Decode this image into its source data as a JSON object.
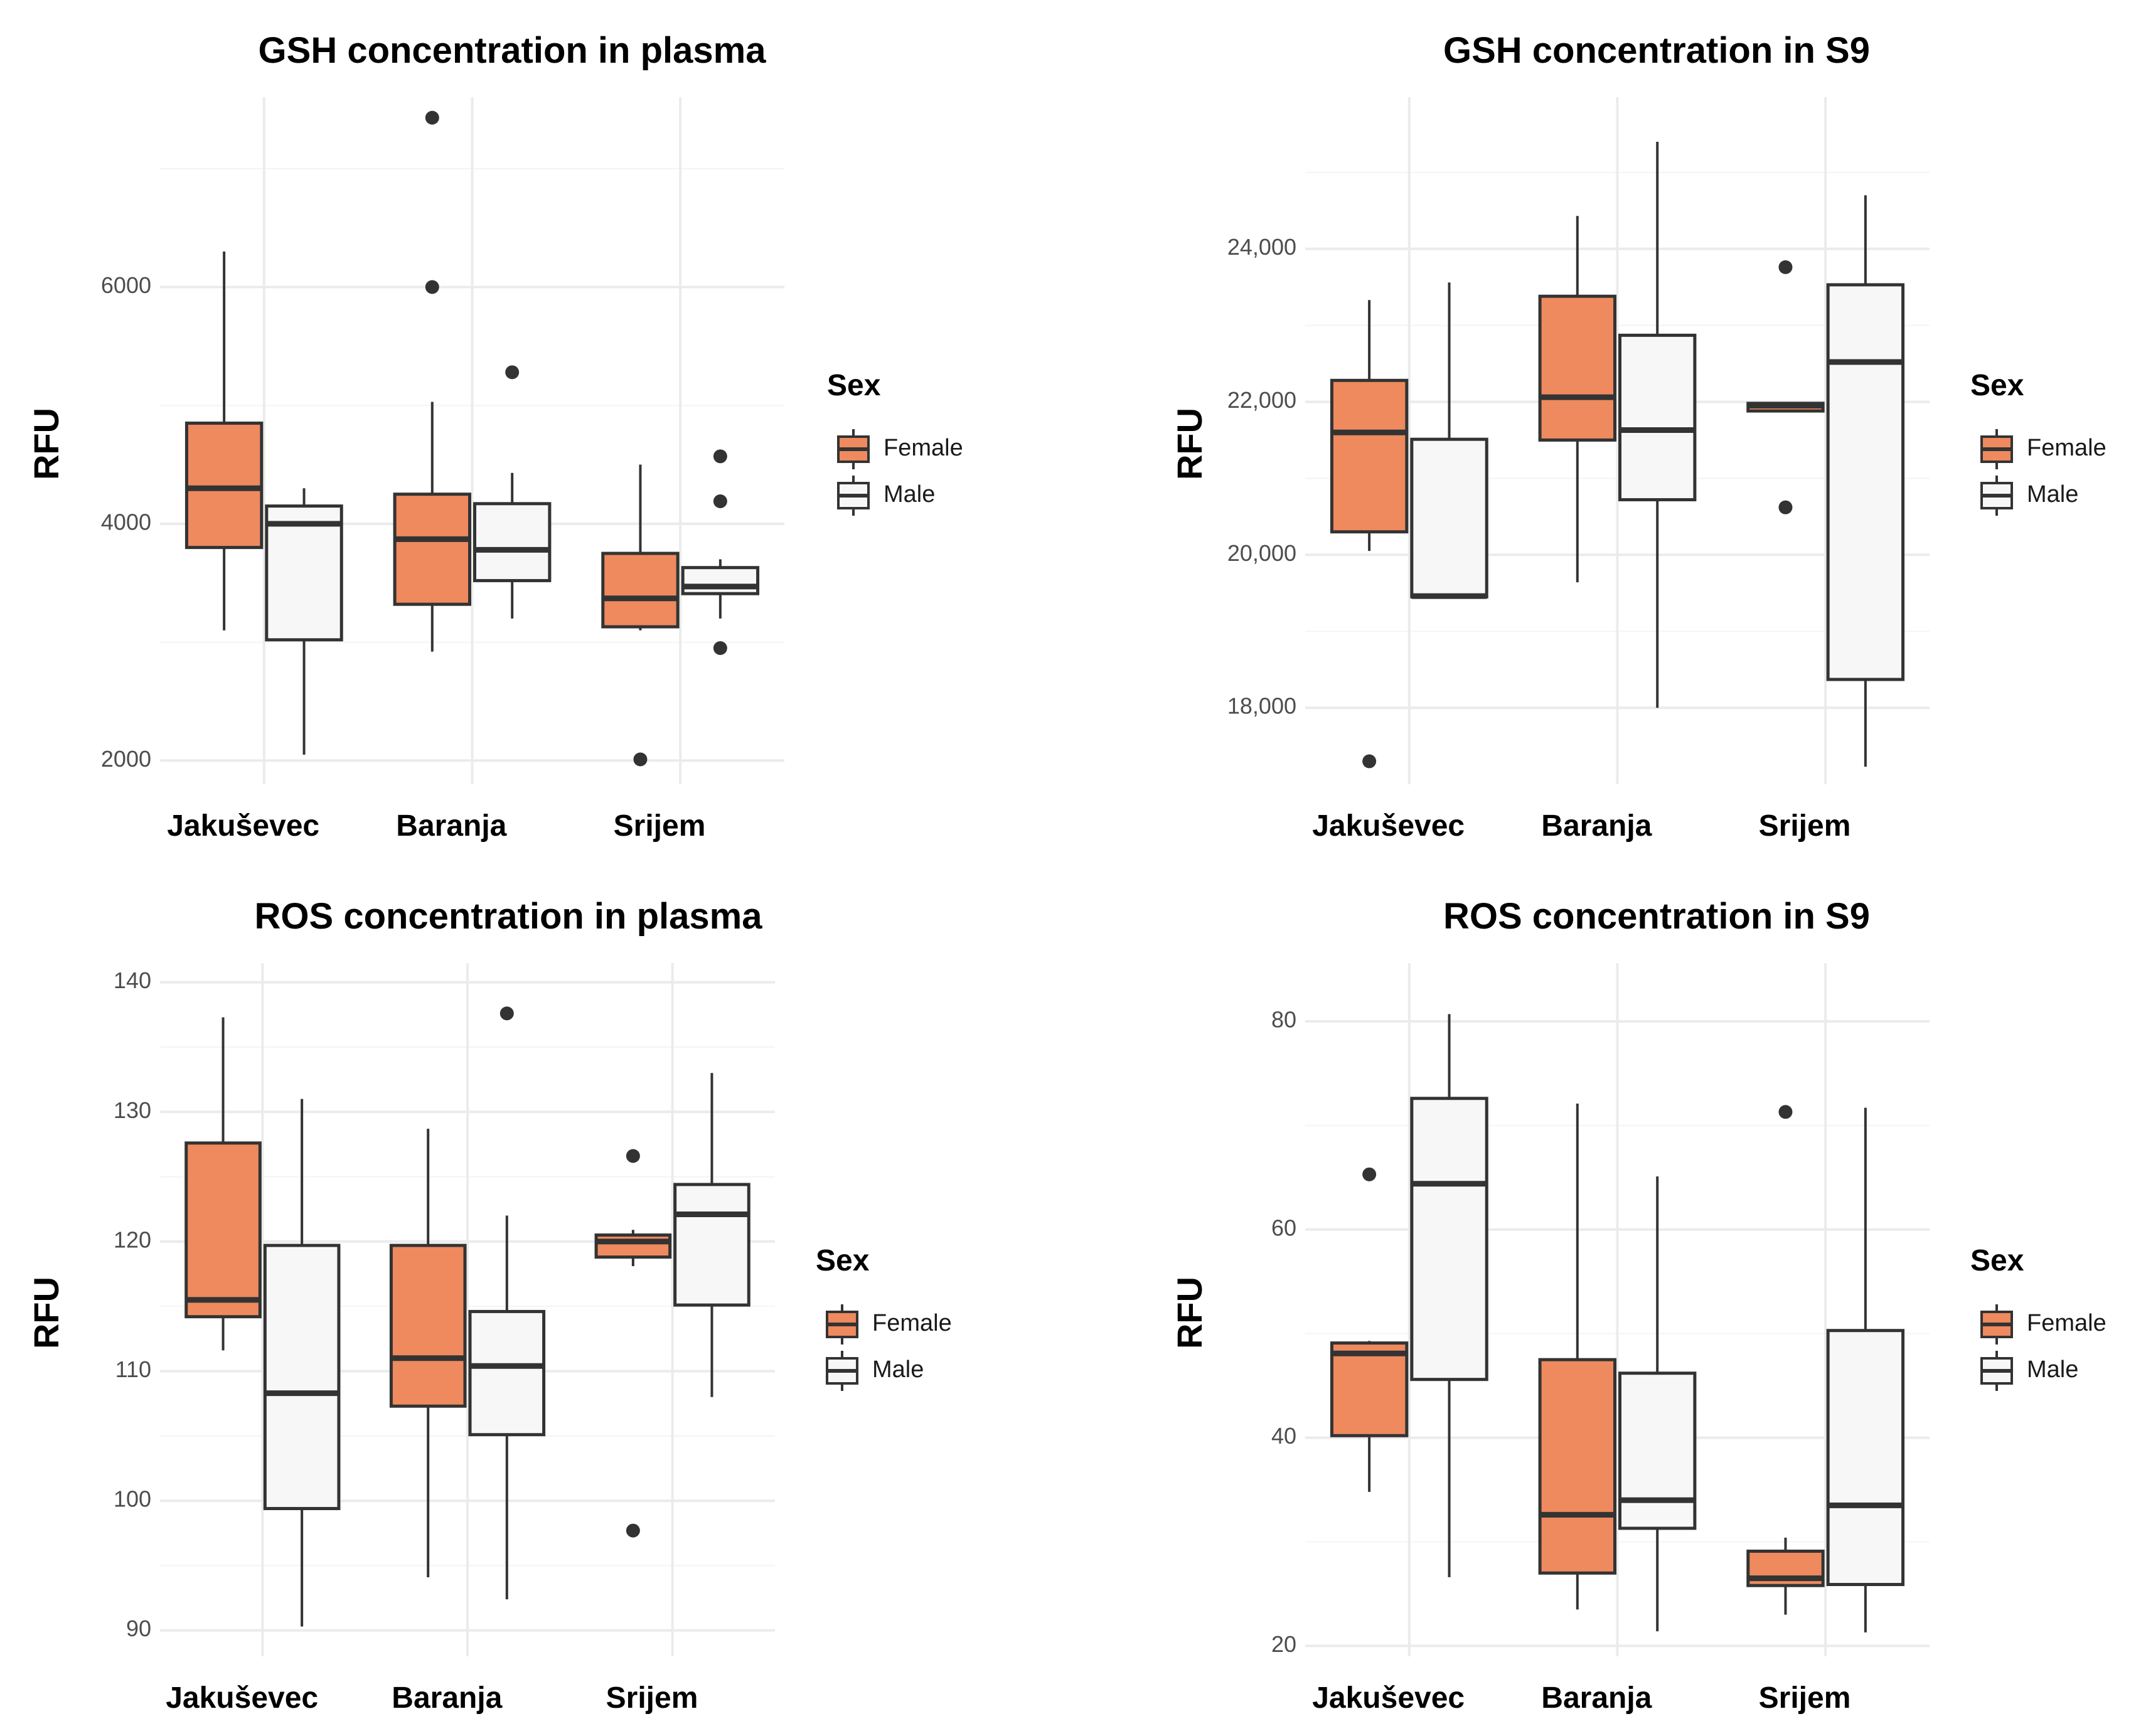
{
  "colors": {
    "female": "#ee8a5e",
    "male": "#f7f7f7",
    "stroke": "#333333",
    "grid": "#ebebeb"
  },
  "chart_data": [
    {
      "type": "boxplot",
      "title": "GSH concentration in plasma",
      "ylabel": "RFU",
      "yticks": [
        "2000",
        "4000",
        "6000"
      ],
      "tick_values": [
        2000,
        4000,
        6000
      ],
      "ylim": [
        1800,
        7550
      ],
      "categories": [
        "Jakuševec",
        "Baranja",
        "Srijem"
      ],
      "legend": {
        "title": "Sex",
        "labels": [
          "Female",
          "Male"
        ]
      },
      "groups": [
        {
          "category": "Jakuševec",
          "sex": "Female",
          "whisker_low": 3100,
          "q1": 3800,
          "median": 4300,
          "q3": 4850,
          "whisker_high": 6300,
          "outliers": []
        },
        {
          "category": "Jakuševec",
          "sex": "Male",
          "whisker_low": 2050,
          "q1": 3020,
          "median": 4000,
          "q3": 4150,
          "whisker_high": 4300,
          "outliers": []
        },
        {
          "category": "Baranja",
          "sex": "Female",
          "whisker_low": 2920,
          "q1": 3320,
          "median": 3870,
          "q3": 4250,
          "whisker_high": 5030,
          "outliers": [
            6000,
            7430
          ]
        },
        {
          "category": "Baranja",
          "sex": "Male",
          "whisker_low": 3200,
          "q1": 3520,
          "median": 3780,
          "q3": 4170,
          "whisker_high": 4430,
          "outliers": [
            5280
          ]
        },
        {
          "category": "Srijem",
          "sex": "Female",
          "whisker_low": 3100,
          "q1": 3130,
          "median": 3370,
          "q3": 3750,
          "whisker_high": 4500,
          "outliers": [
            2010
          ]
        },
        {
          "category": "Srijem",
          "sex": "Male",
          "whisker_low": 3200,
          "q1": 3410,
          "median": 3470,
          "q3": 3630,
          "whisker_high": 3700,
          "outliers": [
            2950,
            4190,
            4570
          ]
        }
      ]
    },
    {
      "type": "boxplot",
      "title": "GSH concentration in S9",
      "ylabel": "RFU",
      "yticks": [
        "18,000",
        "20,000",
        "22,000",
        "24,000"
      ],
      "tick_values": [
        18000,
        20000,
        22000,
        24000
      ],
      "ylim": [
        17000,
        25900
      ],
      "categories": [
        "Jakuševec",
        "Baranja",
        "Srijem"
      ],
      "legend": {
        "title": "Sex",
        "labels": [
          "Female",
          "Male"
        ]
      },
      "groups": [
        {
          "category": "Jakuševec",
          "sex": "Female",
          "whisker_low": 20050,
          "q1": 20300,
          "median": 21600,
          "q3": 22280,
          "whisker_high": 23330,
          "outliers": [
            17300
          ]
        },
        {
          "category": "Jakuševec",
          "sex": "Male",
          "whisker_low": 19450,
          "q1": 19450,
          "median": 19460,
          "q3": 21510,
          "whisker_high": 23560,
          "outliers": []
        },
        {
          "category": "Baranja",
          "sex": "Female",
          "whisker_low": 19640,
          "q1": 21500,
          "median": 22060,
          "q3": 23380,
          "whisker_high": 24430,
          "outliers": []
        },
        {
          "category": "Baranja",
          "sex": "Male",
          "whisker_low": 18000,
          "q1": 20720,
          "median": 21630,
          "q3": 22870,
          "whisker_high": 25400,
          "outliers": []
        },
        {
          "category": "Srijem",
          "sex": "Female",
          "whisker_low": 21880,
          "q1": 21880,
          "median": 21950,
          "q3": 21980,
          "whisker_high": 21980,
          "outliers": [
            20620,
            23760
          ]
        },
        {
          "category": "Srijem",
          "sex": "Male",
          "whisker_low": 17230,
          "q1": 18370,
          "median": 22520,
          "q3": 23530,
          "whisker_high": 24700,
          "outliers": []
        }
      ]
    },
    {
      "type": "boxplot",
      "title": "ROS concentration in plasma",
      "ylabel": "RFU",
      "yticks": [
        "90",
        "100",
        "110",
        "120",
        "130",
        "140"
      ],
      "tick_values": [
        90,
        100,
        110,
        120,
        130,
        140
      ],
      "ylim": [
        88,
        141
      ],
      "categories": [
        "Jakuševec",
        "Baranja",
        "Srijem"
      ],
      "legend": {
        "title": "Sex",
        "labels": [
          "Female",
          "Male"
        ]
      },
      "groups": [
        {
          "category": "Jakuševec",
          "sex": "Female",
          "whisker_low": 111.6,
          "q1": 114.2,
          "median": 115.5,
          "q3": 127.6,
          "whisker_high": 137.3,
          "outliers": []
        },
        {
          "category": "Jakuševec",
          "sex": "Male",
          "whisker_low": 90.3,
          "q1": 99.4,
          "median": 108.3,
          "q3": 119.7,
          "whisker_high": 131.0,
          "outliers": []
        },
        {
          "category": "Baranja",
          "sex": "Female",
          "whisker_low": 94.1,
          "q1": 107.3,
          "median": 111.0,
          "q3": 119.7,
          "whisker_high": 128.7,
          "outliers": []
        },
        {
          "category": "Baranja",
          "sex": "Male",
          "whisker_low": 92.4,
          "q1": 105.1,
          "median": 110.4,
          "q3": 114.6,
          "whisker_high": 122.0,
          "outliers": [
            137.6
          ]
        },
        {
          "category": "Srijem",
          "sex": "Female",
          "whisker_low": 118.1,
          "q1": 118.8,
          "median": 120.0,
          "q3": 120.5,
          "whisker_high": 120.9,
          "outliers": [
            97.7,
            126.6
          ]
        },
        {
          "category": "Srijem",
          "sex": "Male",
          "whisker_low": 108.0,
          "q1": 115.1,
          "median": 122.1,
          "q3": 124.4,
          "whisker_high": 133.0,
          "outliers": []
        }
      ]
    },
    {
      "type": "boxplot",
      "title": "ROS concentration in S9",
      "ylabel": "RFU",
      "yticks": [
        "20",
        "40",
        "60",
        "80"
      ],
      "tick_values": [
        20,
        40,
        60,
        80
      ],
      "ylim": [
        19,
        85
      ],
      "categories": [
        "Jakuševec",
        "Baranja",
        "Srijem"
      ],
      "legend": {
        "title": "Sex",
        "labels": [
          "Female",
          "Male"
        ]
      },
      "groups": [
        {
          "category": "Jakuševec",
          "sex": "Female",
          "whisker_low": 34.8,
          "q1": 40.2,
          "median": 48.1,
          "q3": 49.1,
          "whisker_high": 49.3,
          "outliers": [
            65.3
          ]
        },
        {
          "category": "Jakuševec",
          "sex": "Male",
          "whisker_low": 26.6,
          "q1": 45.6,
          "median": 64.4,
          "q3": 72.6,
          "whisker_high": 80.7,
          "outliers": []
        },
        {
          "category": "Baranja",
          "sex": "Female",
          "whisker_low": 23.5,
          "q1": 27.0,
          "median": 32.6,
          "q3": 47.5,
          "whisker_high": 72.1,
          "outliers": []
        },
        {
          "category": "Baranja",
          "sex": "Male",
          "whisker_low": 21.4,
          "q1": 31.3,
          "median": 34.0,
          "q3": 46.2,
          "whisker_high": 65.1,
          "outliers": []
        },
        {
          "category": "Srijem",
          "sex": "Female",
          "whisker_low": 23.0,
          "q1": 25.8,
          "median": 26.5,
          "q3": 29.1,
          "whisker_high": 30.4,
          "outliers": [
            71.3
          ]
        },
        {
          "category": "Srijem",
          "sex": "Male",
          "whisker_low": 21.3,
          "q1": 25.9,
          "median": 33.5,
          "q3": 50.3,
          "whisker_high": 71.7,
          "outliers": []
        }
      ]
    }
  ]
}
